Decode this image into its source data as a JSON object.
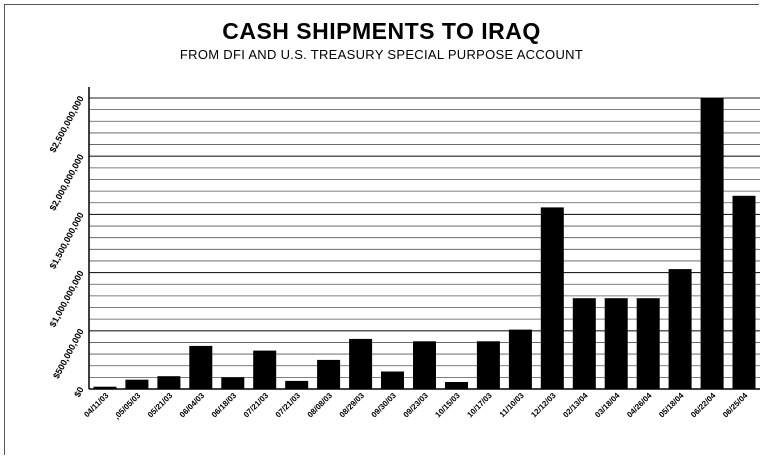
{
  "chart_data": {
    "type": "bar",
    "title": "CASH SHIPMENTS TO IRAQ",
    "subtitle": "FROM DFI AND U.S. TREASURY SPECIAL PURPOSE ACCOUNT",
    "xlabel": "",
    "ylabel": "",
    "ylim": [
      0,
      2500000000
    ],
    "y_ticks": [
      0,
      500000000,
      1000000000,
      1500000000,
      2000000000,
      2500000000
    ],
    "y_tick_labels": [
      "$0",
      "$500,000,000",
      "$1,000,000,000",
      "$1,500,000,000",
      "$2,000,000,000",
      "$2,500,000,000"
    ],
    "grid": true,
    "legend": "none",
    "bar_color": "#000000",
    "categories": [
      "04/11/03",
      ",05/05/03",
      "05/21/03",
      "06/04/03",
      "06/18/03",
      "07/21/03",
      "07/21/03",
      "08/08/03",
      "08/29/03",
      "09/30/03",
      "09/23/03",
      "10/15/03",
      "10/17/03",
      "11/10/03",
      "12/12/03",
      "02/13/04",
      "03/18/04",
      "04/26/04",
      "05/18/04",
      "06/22/04",
      "06/25/04"
    ],
    "values": [
      20000000,
      80000000,
      110000000,
      370000000,
      100000000,
      330000000,
      70000000,
      250000000,
      430000000,
      150000000,
      410000000,
      60000000,
      410000000,
      510000000,
      1560000000,
      780000000,
      780000000,
      780000000,
      1030000000,
      2500000000,
      1660000000
    ]
  }
}
